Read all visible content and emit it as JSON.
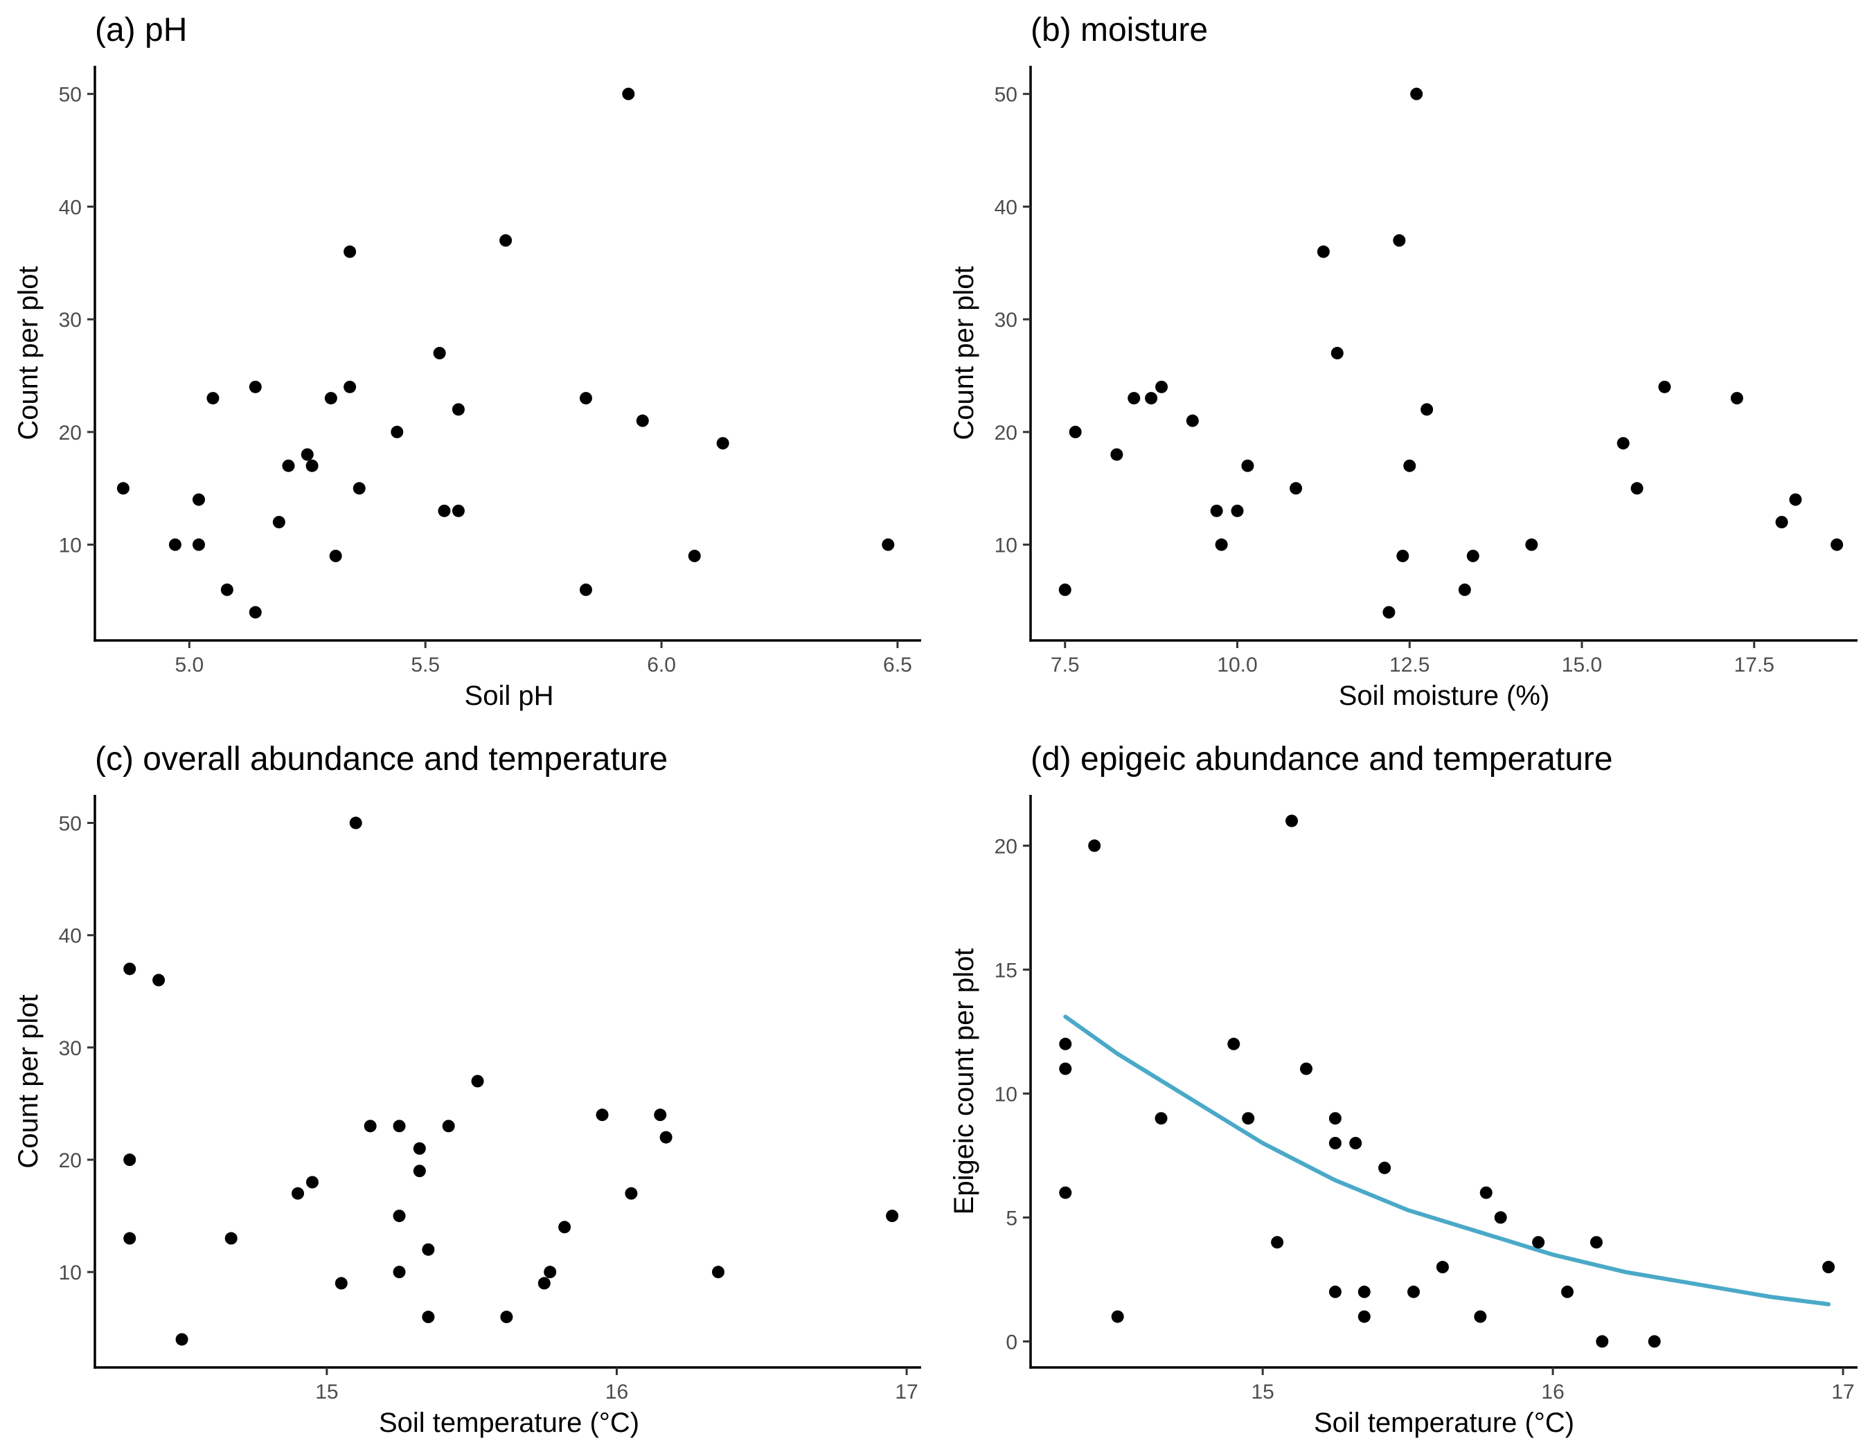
{
  "chart_data": [
    {
      "type": "scatter",
      "title": "(a) pH",
      "xlabel": "Soil pH",
      "ylabel": "Count per plot",
      "xlim": [
        4.8,
        6.55
      ],
      "ylim": [
        1.5,
        52.5
      ],
      "xticks": [
        5.0,
        5.5,
        6.0,
        6.5
      ],
      "xtick_labels": [
        "5.0",
        "5.5",
        "6.0",
        "6.5"
      ],
      "yticks": [
        10,
        20,
        30,
        40,
        50
      ],
      "ytick_labels": [
        "10",
        "20",
        "30",
        "40",
        "50"
      ],
      "grid": false,
      "points": [
        [
          4.86,
          15
        ],
        [
          4.97,
          10
        ],
        [
          5.02,
          14
        ],
        [
          5.02,
          10
        ],
        [
          5.05,
          23
        ],
        [
          5.08,
          6
        ],
        [
          5.14,
          24
        ],
        [
          5.14,
          4
        ],
        [
          5.19,
          12
        ],
        [
          5.21,
          17
        ],
        [
          5.25,
          18
        ],
        [
          5.26,
          17
        ],
        [
          5.3,
          23
        ],
        [
          5.31,
          9
        ],
        [
          5.34,
          36
        ],
        [
          5.34,
          24
        ],
        [
          5.36,
          15
        ],
        [
          5.44,
          20
        ],
        [
          5.53,
          27
        ],
        [
          5.54,
          13
        ],
        [
          5.57,
          22
        ],
        [
          5.57,
          13
        ],
        [
          5.67,
          37
        ],
        [
          5.84,
          23
        ],
        [
          5.84,
          6
        ],
        [
          5.93,
          50
        ],
        [
          5.96,
          21
        ],
        [
          6.07,
          9
        ],
        [
          6.13,
          19
        ],
        [
          6.48,
          10
        ]
      ]
    },
    {
      "type": "scatter",
      "title": "(b) moisture",
      "xlabel": "Soil moisture (%)",
      "ylabel": "Count per plot",
      "xlim": [
        7.0,
        19.0
      ],
      "ylim": [
        1.5,
        52.5
      ],
      "xticks": [
        7.5,
        10.0,
        12.5,
        15.0,
        17.5
      ],
      "xtick_labels": [
        "7.5",
        "10.0",
        "12.5",
        "15.0",
        "17.5"
      ],
      "yticks": [
        10,
        20,
        30,
        40,
        50
      ],
      "ytick_labels": [
        "10",
        "20",
        "30",
        "40",
        "50"
      ],
      "grid": false,
      "points": [
        [
          7.5,
          6
        ],
        [
          7.65,
          20
        ],
        [
          8.25,
          18
        ],
        [
          8.5,
          23
        ],
        [
          8.75,
          23
        ],
        [
          8.9,
          24
        ],
        [
          9.35,
          21
        ],
        [
          9.7,
          13
        ],
        [
          9.77,
          10
        ],
        [
          10.0,
          13
        ],
        [
          10.15,
          17
        ],
        [
          10.85,
          15
        ],
        [
          11.25,
          36
        ],
        [
          11.45,
          27
        ],
        [
          12.2,
          4
        ],
        [
          12.35,
          37
        ],
        [
          12.4,
          9
        ],
        [
          12.5,
          17
        ],
        [
          12.6,
          50
        ],
        [
          12.75,
          22
        ],
        [
          13.3,
          6
        ],
        [
          13.42,
          9
        ],
        [
          14.27,
          10
        ],
        [
          15.6,
          19
        ],
        [
          15.8,
          15
        ],
        [
          16.2,
          24
        ],
        [
          17.25,
          23
        ],
        [
          17.9,
          12
        ],
        [
          18.1,
          14
        ],
        [
          18.7,
          10
        ]
      ]
    },
    {
      "type": "scatter",
      "title": "(c) overall abundance and temperature",
      "xlabel": "Soil temperature (°C)",
      "ylabel": "Count per plot",
      "xlim": [
        14.2,
        17.05
      ],
      "ylim": [
        1.5,
        52.5
      ],
      "xticks": [
        15,
        16,
        17
      ],
      "xtick_labels": [
        "15",
        "16",
        "17"
      ],
      "yticks": [
        10,
        20,
        30,
        40,
        50
      ],
      "ytick_labels": [
        "10",
        "20",
        "30",
        "40",
        "50"
      ],
      "grid": false,
      "points": [
        [
          14.32,
          37
        ],
        [
          14.32,
          20
        ],
        [
          14.32,
          13
        ],
        [
          14.42,
          36
        ],
        [
          14.5,
          4
        ],
        [
          14.67,
          13
        ],
        [
          14.9,
          17
        ],
        [
          14.95,
          18
        ],
        [
          15.05,
          9
        ],
        [
          15.1,
          50
        ],
        [
          15.15,
          23
        ],
        [
          15.25,
          23
        ],
        [
          15.25,
          15
        ],
        [
          15.25,
          10
        ],
        [
          15.32,
          21
        ],
        [
          15.32,
          19
        ],
        [
          15.35,
          12
        ],
        [
          15.35,
          6
        ],
        [
          15.42,
          23
        ],
        [
          15.52,
          27
        ],
        [
          15.62,
          6
        ],
        [
          15.75,
          9
        ],
        [
          15.77,
          10
        ],
        [
          15.82,
          14
        ],
        [
          15.95,
          24
        ],
        [
          16.05,
          17
        ],
        [
          16.15,
          24
        ],
        [
          16.17,
          22
        ],
        [
          16.35,
          10
        ],
        [
          16.95,
          15
        ]
      ]
    },
    {
      "type": "scatter",
      "title": "(d) epigeic abundance and temperature",
      "xlabel": "Soil temperature (°C)",
      "ylabel": "Epigeic count per plot",
      "xlim": [
        14.2,
        17.05
      ],
      "ylim": [
        -1.05,
        22.05
      ],
      "xticks": [
        15,
        16,
        17
      ],
      "xtick_labels": [
        "15",
        "16",
        "17"
      ],
      "yticks": [
        0,
        5,
        10,
        15,
        20
      ],
      "ytick_labels": [
        "0",
        "5",
        "10",
        "15",
        "20"
      ],
      "grid": false,
      "curve_color": "#4aa9c8",
      "points": [
        [
          14.32,
          12
        ],
        [
          14.32,
          11
        ],
        [
          14.32,
          6
        ],
        [
          14.42,
          20
        ],
        [
          14.5,
          1
        ],
        [
          14.65,
          9
        ],
        [
          14.9,
          12
        ],
        [
          14.95,
          9
        ],
        [
          15.05,
          4
        ],
        [
          15.1,
          21
        ],
        [
          15.15,
          11
        ],
        [
          15.25,
          9
        ],
        [
          15.25,
          8
        ],
        [
          15.25,
          2
        ],
        [
          15.32,
          8
        ],
        [
          15.35,
          2
        ],
        [
          15.35,
          1
        ],
        [
          15.42,
          7
        ],
        [
          15.52,
          2
        ],
        [
          15.62,
          3
        ],
        [
          15.75,
          1
        ],
        [
          15.77,
          6
        ],
        [
          15.82,
          5
        ],
        [
          15.95,
          4
        ],
        [
          16.05,
          2
        ],
        [
          16.15,
          4
        ],
        [
          16.17,
          0
        ],
        [
          16.35,
          0
        ],
        [
          16.95,
          3
        ]
      ],
      "fitted_curve": [
        [
          14.32,
          13.1
        ],
        [
          14.5,
          11.6
        ],
        [
          14.75,
          9.8
        ],
        [
          15.0,
          8.0
        ],
        [
          15.25,
          6.5
        ],
        [
          15.5,
          5.3
        ],
        [
          15.75,
          4.4
        ],
        [
          16.0,
          3.5
        ],
        [
          16.25,
          2.8
        ],
        [
          16.5,
          2.3
        ],
        [
          16.75,
          1.8
        ],
        [
          16.95,
          1.5
        ]
      ]
    }
  ]
}
